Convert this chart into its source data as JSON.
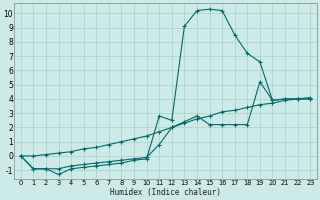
{
  "xlabel": "Humidex (Indice chaleur)",
  "bg_color": "#cceae7",
  "grid_color": "#aacfcc",
  "line_color": "#006b6b",
  "xlim": [
    -0.5,
    23.5
  ],
  "ylim": [
    -1.6,
    10.7
  ],
  "xticks": [
    0,
    1,
    2,
    3,
    4,
    5,
    6,
    7,
    8,
    9,
    10,
    11,
    12,
    13,
    14,
    15,
    16,
    17,
    18,
    19,
    20,
    21,
    22,
    23
  ],
  "yticks": [
    -1,
    0,
    1,
    2,
    3,
    4,
    5,
    6,
    7,
    8,
    9,
    10
  ],
  "line1_x": [
    0,
    1,
    2,
    3,
    4,
    5,
    6,
    7,
    8,
    9,
    10,
    11,
    12,
    13,
    14,
    15,
    16,
    17,
    18,
    19,
    20,
    21,
    22,
    23
  ],
  "line1_y": [
    0.0,
    -0.9,
    -0.9,
    -1.3,
    -0.9,
    -0.8,
    -0.7,
    -0.6,
    -0.5,
    -0.3,
    -0.2,
    2.8,
    2.5,
    9.1,
    10.2,
    10.3,
    10.2,
    8.5,
    7.2,
    6.6,
    3.9,
    4.0,
    4.0,
    4.0
  ],
  "line2_x": [
    0,
    1,
    2,
    3,
    4,
    5,
    6,
    7,
    8,
    9,
    10,
    11,
    12,
    13,
    14,
    15,
    16,
    17,
    18,
    19,
    20,
    21,
    22,
    23
  ],
  "line2_y": [
    0.0,
    -0.9,
    -0.9,
    -0.9,
    -0.7,
    -0.6,
    -0.5,
    -0.4,
    -0.3,
    -0.2,
    -0.1,
    0.8,
    2.0,
    2.4,
    2.8,
    2.2,
    2.2,
    2.2,
    2.2,
    5.2,
    3.9,
    4.0,
    4.0,
    4.0
  ],
  "line3_x": [
    0,
    1,
    2,
    3,
    4,
    5,
    6,
    7,
    8,
    9,
    10,
    11,
    12,
    13,
    14,
    15,
    16,
    17,
    18,
    19,
    20,
    21,
    22,
    23
  ],
  "line3_y": [
    0.0,
    0.0,
    0.1,
    0.2,
    0.3,
    0.5,
    0.6,
    0.8,
    1.0,
    1.2,
    1.4,
    1.7,
    2.0,
    2.3,
    2.6,
    2.8,
    3.1,
    3.2,
    3.4,
    3.6,
    3.7,
    3.9,
    4.0,
    4.1
  ]
}
